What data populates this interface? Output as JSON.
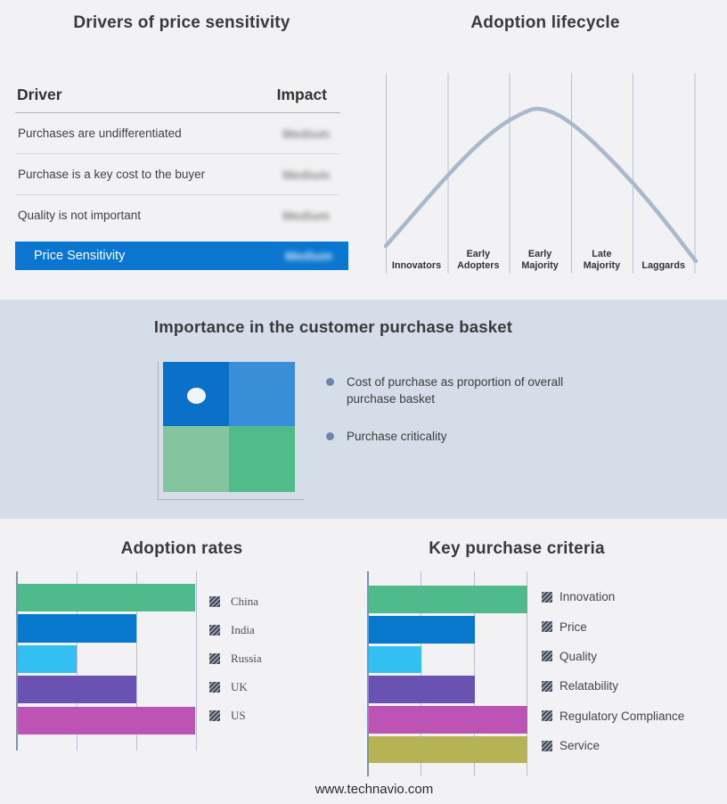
{
  "page": {
    "footer_url": "www.technavio.com"
  },
  "drivers_panel": {
    "title": "Drivers of price sensitivity",
    "table": {
      "col_driver": "Driver",
      "col_impact": "Impact",
      "rows": [
        {
          "driver": "Purchases are undifferentiated",
          "impact": "Medium"
        },
        {
          "driver": "Purchase is a key cost to the buyer",
          "impact": "Medium"
        },
        {
          "driver": "Quality is not important",
          "impact": "Medium"
        }
      ],
      "highlight_row": {
        "driver": "Price Sensitivity",
        "impact": "Medium"
      },
      "highlight_color": "#0b76cf",
      "impact_values_blurred": true
    }
  },
  "lifecycle_panel": {
    "title": "Adoption lifecycle"
  },
  "basket_section": {
    "title": "Importance in the customer purchase basket",
    "bullets": [
      "Cost of purchase as proportion of overall purchase basket",
      "Purchase criticality"
    ],
    "quadrant_colors": {
      "top_left": "#0b70c7",
      "top_right": "#3a8ed8",
      "bottom_left": "#84c5a0",
      "bottom_right": "#52bb8b",
      "dot": "#edf5fb"
    }
  },
  "chart_data": [
    {
      "type": "line",
      "title": "Adoption lifecycle",
      "subtype": "bell-curve",
      "categories": [
        "Innovators",
        "Early Adopters",
        "Early Majority",
        "Late Majority",
        "Laggards"
      ],
      "stage_lines": [
        [
          "Innovators"
        ],
        [
          "Early",
          "Adopters"
        ],
        [
          "Early",
          "Majority"
        ],
        [
          "Late",
          "Majority"
        ],
        [
          "Laggards"
        ]
      ],
      "curve_points_relative": [
        [
          0.0,
          0.14
        ],
        [
          1.0,
          0.49
        ],
        [
          2.0,
          0.94
        ],
        [
          2.5,
          1.0
        ],
        [
          3.0,
          0.92
        ],
        [
          4.0,
          0.44
        ],
        [
          5.05,
          0.06
        ]
      ],
      "curve_color": "#a9b8cd",
      "grid": "vertical",
      "ylabel": "",
      "xlabel": ""
    },
    {
      "type": "bar",
      "orientation": "horizontal",
      "title": "Adoption rates",
      "categories": [
        "China",
        "India",
        "Russia",
        "UK",
        "US"
      ],
      "values": [
        3,
        2,
        1,
        2,
        3
      ],
      "xlim": [
        0,
        3
      ],
      "value_note": "relative scale read from unlabeled gridlines (1 unit per gridline)",
      "colors": [
        "#4fba8c",
        "#0878cc",
        "#33bff2",
        "#6a52b3",
        "#bd53b5"
      ],
      "legend_position": "right",
      "legend_swatch_style": "hatched",
      "grid": "vertical"
    },
    {
      "type": "bar",
      "orientation": "horizontal",
      "title": "Key purchase criteria",
      "categories": [
        "Innovation",
        "Price",
        "Quality",
        "Relatability",
        "Regulatory Compliance",
        "Service"
      ],
      "values": [
        3,
        2,
        1,
        2,
        3,
        3
      ],
      "xlim": [
        0,
        3
      ],
      "value_note": "relative scale read from unlabeled gridlines (1 unit per gridline)",
      "colors": [
        "#4fba8c",
        "#0878cc",
        "#33bff2",
        "#6a52b3",
        "#bd53b5",
        "#b6b356"
      ],
      "legend_position": "right",
      "legend_swatch_style": "hatched",
      "grid": "vertical"
    }
  ]
}
